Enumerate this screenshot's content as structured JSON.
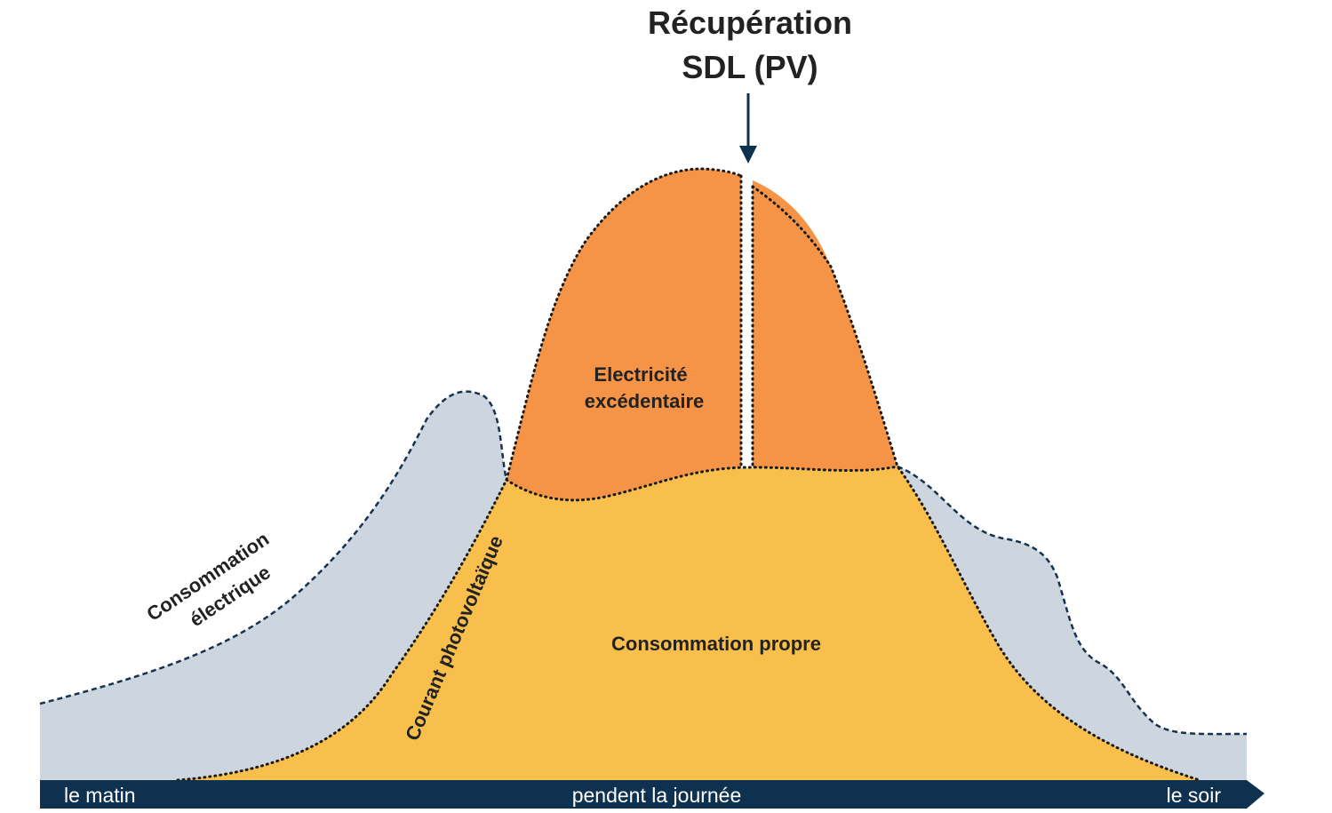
{
  "title": {
    "line1": "Récupération",
    "line2": "SDL (PV)"
  },
  "labels": {
    "excess_line1": "Electricité",
    "excess_line2": "excédentaire",
    "self_consumption": "Consommation propre",
    "consumption_line1": "Consommation",
    "consumption_line2": "électrique",
    "pv_current": "Courant photovoltaïque"
  },
  "axis": {
    "start": "le matin",
    "middle": "pendent la journée",
    "end": "le soir"
  },
  "colors": {
    "consumption_fill": "#cdd5de",
    "self_consumption_fill": "#f8bf4c",
    "excess_fill": "#f59446",
    "axis_bar": "#0f3150",
    "arrow": "#0f3150",
    "text": "#222222",
    "dashed_stroke": "#17324f",
    "dotted_stroke": "#1a1a1a"
  }
}
